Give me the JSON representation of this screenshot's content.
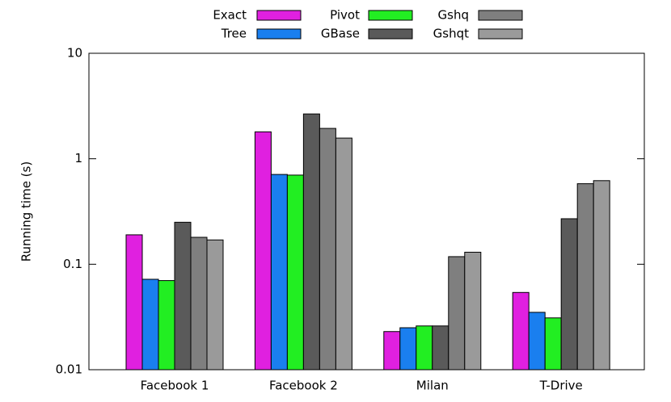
{
  "chart_data": {
    "type": "bar",
    "y_label": "Running time (s)",
    "categories": [
      "Facebook 1",
      "Facebook 2",
      "Milan",
      "T-Drive"
    ],
    "series": [
      {
        "name": "Exact",
        "color": "#e020e0",
        "values": [
          0.19,
          1.8,
          0.023,
          0.054
        ]
      },
      {
        "name": "Tree",
        "color": "#1a7fef",
        "values": [
          0.072,
          0.71,
          0.025,
          0.035
        ]
      },
      {
        "name": "Pivot",
        "color": "#22ee22",
        "values": [
          0.07,
          0.7,
          0.026,
          0.031
        ]
      },
      {
        "name": "GBase",
        "color": "#5a5a5a",
        "values": [
          0.25,
          2.66,
          0.026,
          0.27
        ]
      },
      {
        "name": "Gshq",
        "color": "#7f7f7f",
        "values": [
          0.18,
          1.94,
          0.118,
          0.58
        ]
      },
      {
        "name": "Gshqt",
        "color": "#9a9a9a",
        "values": [
          0.17,
          1.57,
          0.13,
          0.62
        ]
      }
    ],
    "log_scale": true,
    "ylim": [
      0.01,
      10
    ],
    "yticks": [
      0.01,
      0.1,
      1,
      10
    ],
    "grid": false
  }
}
